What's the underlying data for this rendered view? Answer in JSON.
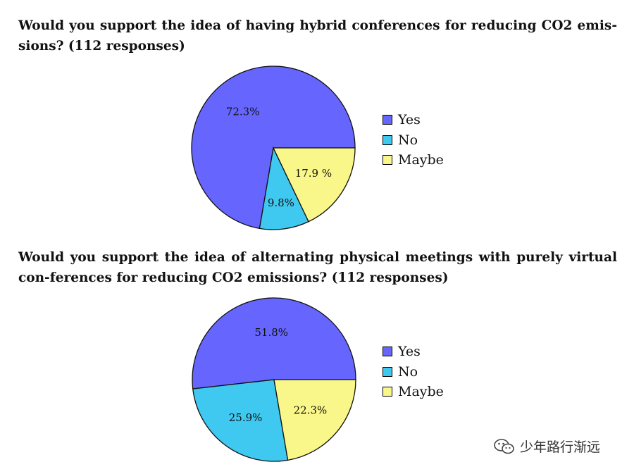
{
  "chart_data": [
    {
      "type": "pie",
      "title": "Would you support the idea of having hybrid conferences for reducing CO2 emis-sions? (112 responses)",
      "categories": [
        "Yes",
        "No",
        "Maybe"
      ],
      "values": [
        72.3,
        9.8,
        17.9
      ],
      "data_labels": [
        "72.3%",
        "9.8%",
        "17.9 %"
      ],
      "colors": [
        "#6666FF",
        "#3FC8F0",
        "#FAF78A"
      ],
      "legend": "right"
    },
    {
      "type": "pie",
      "title": "Would you support the idea of alternating physical meetings with purely virtual con-ferences for reducing CO2 emissions? (112 responses)",
      "categories": [
        "Yes",
        "No",
        "Maybe"
      ],
      "values": [
        51.8,
        25.9,
        22.3
      ],
      "data_labels": [
        "51.8%",
        "25.9%",
        "22.3%"
      ],
      "colors": [
        "#6666FF",
        "#3FC8F0",
        "#FAF78A"
      ],
      "legend": "right"
    }
  ],
  "watermark": {
    "text": "少年路行渐远",
    "icon": "wechat-icon"
  }
}
